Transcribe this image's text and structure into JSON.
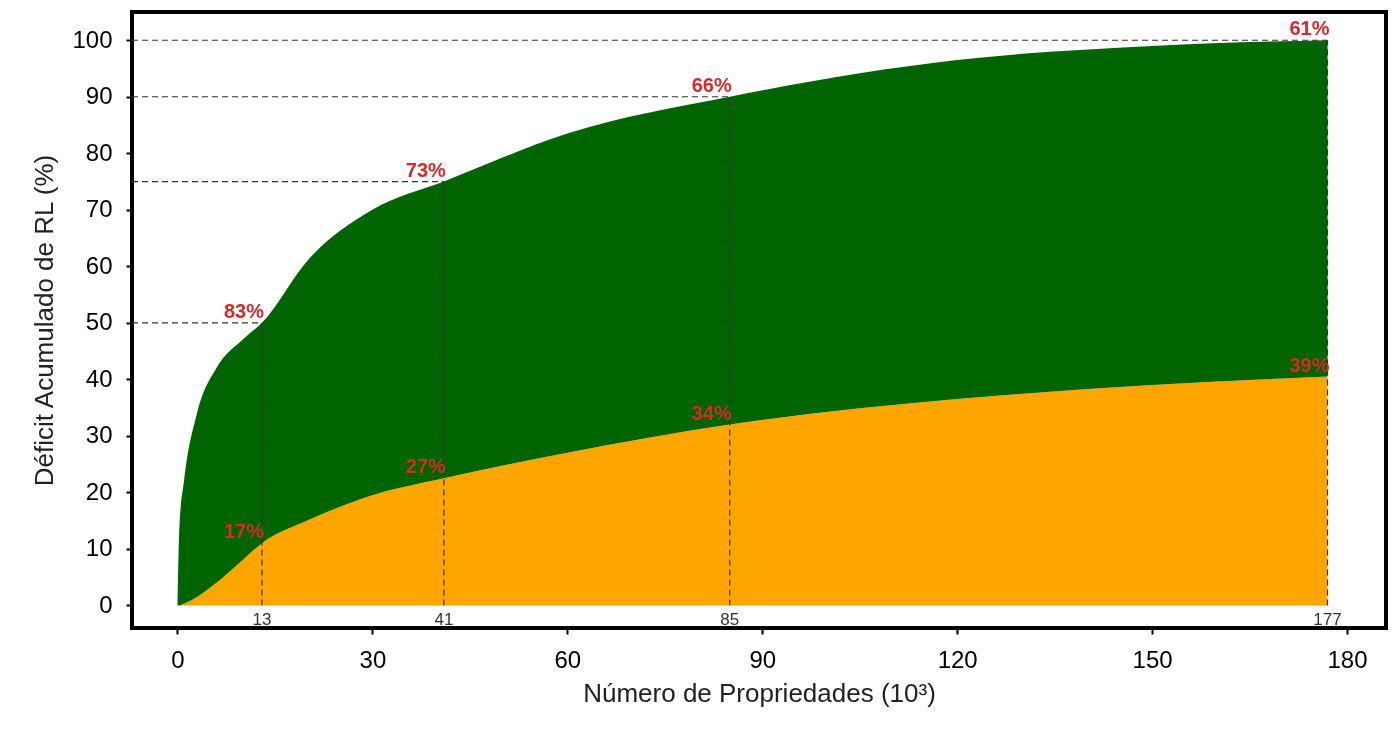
{
  "chart_data": {
    "type": "area",
    "xlabel": "Número de Propriedades (10³)",
    "ylabel": "Déficit Acumulado de RL (%)",
    "x": [
      0,
      0.3,
      1,
      3,
      6,
      10,
      13,
      20,
      30,
      41,
      60,
      85,
      120,
      150,
      177
    ],
    "stacked": true,
    "series": [
      {
        "color": "#ffa500",
        "values": [
          0,
          0,
          0.3,
          1.5,
          4,
          8,
          11,
          15,
          19.5,
          22.5,
          27,
          32,
          36.5,
          39,
          40.5
        ]
      },
      {
        "color": "#006400",
        "values": [
          0,
          14,
          21.7,
          32.5,
          38,
          39,
          39,
          46,
          50.5,
          52.5,
          56.5,
          58,
          60,
          60,
          59.5
        ]
      }
    ],
    "xlim": [
      -7,
      186
    ],
    "ylim": [
      -4,
      105
    ],
    "xticks": [
      0,
      30,
      60,
      90,
      120,
      150,
      180
    ],
    "yticks": [
      0,
      10,
      20,
      30,
      40,
      50,
      60,
      70,
      80,
      90,
      100
    ],
    "ref_lines": [
      {
        "axis": "y",
        "value": 50,
        "label": null,
        "color": "#333333",
        "line_style": "dashed"
      },
      {
        "axis": "y",
        "value": 75,
        "label": null,
        "color": "#333333",
        "line_style": "dashed"
      },
      {
        "axis": "y",
        "value": 90,
        "label": null,
        "color": "#333333",
        "line_style": "dashed"
      },
      {
        "axis": "y",
        "value": 100,
        "label": null,
        "color": "#333333",
        "line_style": "dashed"
      },
      {
        "axis": "x",
        "value": 13,
        "label": "13",
        "color": "#333333",
        "line_style": "dashed"
      },
      {
        "axis": "x",
        "value": 41,
        "label": "41",
        "color": "#333333",
        "line_style": "dashed"
      },
      {
        "axis": "x",
        "value": 85,
        "label": "85",
        "color": "#333333",
        "line_style": "dashed"
      },
      {
        "axis": "x",
        "value": 177,
        "label": "177",
        "color": "#333333",
        "line_style": "dashed"
      }
    ],
    "annotations": [
      {
        "text": "83%",
        "x": 13,
        "y": 50
      },
      {
        "text": "17%",
        "x": 13,
        "y": 11
      },
      {
        "text": "73%",
        "x": 41,
        "y": 75
      },
      {
        "text": "27%",
        "x": 41,
        "y": 22.5
      },
      {
        "text": "66%",
        "x": 85,
        "y": 90
      },
      {
        "text": "34%",
        "x": 85,
        "y": 32
      },
      {
        "text": "61%",
        "x": 177,
        "y": 100
      },
      {
        "text": "39%",
        "x": 177,
        "y": 40.5
      }
    ]
  }
}
